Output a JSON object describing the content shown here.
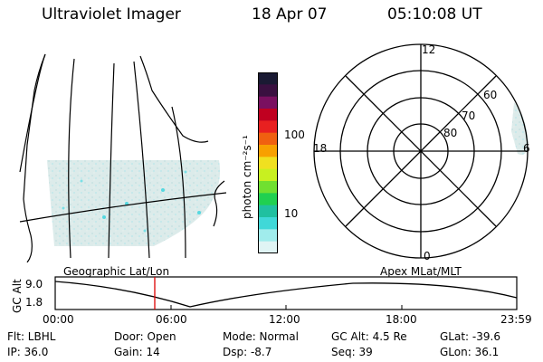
{
  "header": {
    "title": "Ultraviolet Imager",
    "date": "18 Apr 07",
    "time": "05:10:08 UT"
  },
  "colorbar": {
    "unit_label": "photon cm⁻²s⁻¹",
    "ticks": [
      "100",
      "10"
    ],
    "colors": [
      "#1a1a33",
      "#3a1040",
      "#7a1060",
      "#c00020",
      "#e82020",
      "#f06010",
      "#f8a000",
      "#f0e020",
      "#c8f020",
      "#70e030",
      "#20d050",
      "#20c0a0",
      "#40d8d8",
      "#a0ecec",
      "#e0f4f4"
    ]
  },
  "polar_plot": {
    "mlt_labels": {
      "top": "12",
      "left": "18",
      "right": "6",
      "bottom": "0"
    },
    "lat_labels": [
      "60",
      "70",
      "80"
    ]
  },
  "timeline": {
    "left_label": "Geographic Lat/Lon",
    "right_label": "Apex MLat/MLT",
    "axis_title": "GC Alt",
    "y_ticks": [
      "9.0",
      "1.8"
    ],
    "x_ticks": [
      "00:00",
      "06:00",
      "12:00",
      "18:00",
      "23:59"
    ],
    "marker_color": "#dd0000"
  },
  "info": {
    "flt": "Flt: LBHL",
    "ip": "IP: 36.0",
    "door": "Door: Open",
    "gain": "Gain: 14",
    "mode": "Mode: Normal",
    "dsp": "Dsp:   -8.7",
    "gcalt": "GC Alt: 4.5 Re",
    "seq": "Seq: 39",
    "glat": "GLat: -39.6",
    "glon": "GLon:  36.1"
  }
}
